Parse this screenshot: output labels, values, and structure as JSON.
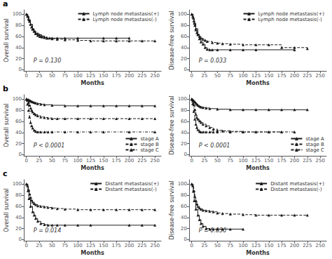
{
  "chart_data": [
    {
      "type": "step",
      "title": "a",
      "xlabel": "Months",
      "ylabel": "Overall survival",
      "annotations": [
        "P = 0.130"
      ],
      "xlim": [
        -5,
        262
      ],
      "xticks": [
        0,
        25,
        50,
        75,
        100,
        125,
        150,
        175,
        200,
        225,
        250
      ],
      "ylim": [
        -2,
        108
      ],
      "yticks": [
        0,
        20,
        40,
        60,
        80,
        100
      ],
      "grid": false,
      "legend": "upper right",
      "series": [
        {
          "name": "Lymph node metastasis(+)",
          "color": "#1a1a1a",
          "line_style": "solid",
          "marker": "triangle",
          "x": [
            0,
            3,
            5,
            8,
            12,
            15,
            18,
            22,
            26,
            30,
            35,
            40,
            45,
            50,
            60,
            75,
            100,
            150,
            175,
            200
          ],
          "values": [
            100,
            96,
            90,
            82,
            74,
            69,
            65,
            62,
            60,
            59,
            58,
            57,
            57,
            57,
            57,
            57,
            57,
            57,
            57,
            57
          ]
        },
        {
          "name": "Lymph node metastasis(-)",
          "color": "#1a1a1a",
          "line_style": "dashed",
          "marker": "triangle",
          "x": [
            0,
            2,
            4,
            6,
            8,
            10,
            12,
            15,
            18,
            22,
            26,
            30,
            35,
            40,
            50,
            60,
            75,
            100,
            125,
            150,
            175,
            200,
            225,
            250
          ],
          "values": [
            100,
            97,
            92,
            87,
            82,
            77,
            73,
            70,
            67,
            65,
            63,
            61,
            59,
            57,
            56,
            55,
            54,
            53,
            52,
            52,
            52,
            52,
            52,
            52
          ]
        }
      ]
    },
    {
      "type": "step",
      "xlabel": "Months",
      "ylabel": "Disease-free survival",
      "annotations": [
        "P = 0.033"
      ],
      "xlim": [
        -5,
        262
      ],
      "xticks": [
        0,
        25,
        50,
        75,
        100,
        125,
        150,
        175,
        200,
        225,
        250
      ],
      "ylim": [
        -2,
        108
      ],
      "yticks": [
        0,
        20,
        40,
        60,
        80,
        100
      ],
      "grid": false,
      "legend": "upper right",
      "series": [
        {
          "name": "Lymph node metastasis(+)",
          "color": "#1a1a1a",
          "line_style": "solid",
          "marker": "triangle",
          "x": [
            0,
            3,
            5,
            8,
            12,
            15,
            18,
            22,
            26,
            30,
            35,
            40,
            50,
            75,
            100,
            125,
            200
          ],
          "values": [
            100,
            93,
            84,
            74,
            64,
            56,
            50,
            46,
            40,
            37,
            36,
            36,
            36,
            36,
            36,
            36,
            36
          ]
        },
        {
          "name": "Lymph node metastasis(-)",
          "color": "#1a1a1a",
          "line_style": "dashed",
          "marker": "triangle",
          "x": [
            0,
            2,
            4,
            6,
            8,
            10,
            12,
            15,
            18,
            22,
            26,
            30,
            40,
            50,
            60,
            75,
            100,
            125,
            150,
            175,
            200,
            225
          ],
          "values": [
            100,
            96,
            88,
            80,
            72,
            67,
            63,
            60,
            57,
            55,
            53,
            51,
            49,
            48,
            47,
            46,
            45,
            45,
            45,
            40,
            40,
            38
          ]
        }
      ]
    },
    {
      "type": "step",
      "title": "b",
      "xlabel": "Months",
      "ylabel": "Overall survival",
      "annotations": [
        "P < 0.0001"
      ],
      "xlim": [
        -5,
        262
      ],
      "xticks": [
        0,
        25,
        50,
        75,
        100,
        125,
        150,
        175,
        200,
        225,
        250
      ],
      "ylim": [
        -2,
        108
      ],
      "yticks": [
        0,
        20,
        40,
        60,
        80,
        100
      ],
      "grid": false,
      "legend": "lower right",
      "series": [
        {
          "name": "stage A",
          "color": "#1a1a1a",
          "line_style": "solid",
          "marker": "triangle",
          "x": [
            0,
            2,
            4,
            6,
            8,
            10,
            12,
            15,
            18,
            22,
            28,
            35,
            50,
            75,
            100,
            125,
            150,
            175,
            200,
            225,
            250
          ],
          "values": [
            100,
            99,
            99,
            98,
            97,
            96,
            95,
            94,
            93,
            92,
            91,
            90,
            89,
            88,
            88,
            88,
            88,
            88,
            88,
            88,
            88
          ]
        },
        {
          "name": "stage B",
          "color": "#1a1a1a",
          "line_style": "dashed",
          "marker": "triangle",
          "x": [
            0,
            2,
            4,
            6,
            8,
            10,
            12,
            15,
            18,
            22,
            28,
            35,
            42,
            50,
            60,
            75,
            100,
            125,
            150,
            175,
            200,
            225,
            250
          ],
          "values": [
            100,
            98,
            94,
            89,
            84,
            80,
            77,
            74,
            72,
            70,
            68,
            67,
            66,
            65,
            65,
            65,
            65,
            65,
            65,
            65,
            65,
            65,
            65
          ]
        },
        {
          "name": "stage C",
          "color": "#1a1a1a",
          "line_style": "dashdot",
          "marker": "triangle",
          "x": [
            0,
            2,
            4,
            6,
            8,
            10,
            12,
            15,
            18,
            22,
            28,
            35,
            42,
            50,
            75,
            100,
            125,
            150,
            200,
            250
          ],
          "values": [
            100,
            91,
            80,
            68,
            58,
            52,
            48,
            44,
            42,
            41,
            41,
            41,
            41,
            41,
            41,
            41,
            41,
            41,
            41,
            41
          ]
        }
      ]
    },
    {
      "type": "step",
      "xlabel": "Months",
      "ylabel": "Disease-free survival",
      "annotations": [
        "P < 0.0001"
      ],
      "xlim": [
        -5,
        262
      ],
      "xticks": [
        0,
        25,
        50,
        75,
        100,
        125,
        150,
        175,
        200,
        225,
        250
      ],
      "ylim": [
        -2,
        108
      ],
      "yticks": [
        0,
        20,
        40,
        60,
        80,
        100
      ],
      "grid": false,
      "legend": "lower right",
      "series": [
        {
          "name": "stage A",
          "color": "#1a1a1a",
          "line_style": "solid",
          "marker": "triangle",
          "x": [
            0,
            2,
            4,
            6,
            8,
            10,
            12,
            15,
            18,
            22,
            28,
            35,
            50,
            75,
            100,
            125,
            150,
            175,
            200,
            225
          ],
          "values": [
            100,
            99,
            97,
            95,
            93,
            91,
            89,
            87,
            86,
            85,
            84,
            83,
            82,
            81,
            81,
            81,
            81,
            81,
            81,
            81
          ]
        },
        {
          "name": "stage B",
          "color": "#1a1a1a",
          "line_style": "dashed",
          "marker": "triangle",
          "x": [
            0,
            2,
            4,
            6,
            8,
            10,
            12,
            15,
            18,
            22,
            28,
            35,
            42,
            50,
            60,
            75,
            100,
            125,
            150,
            175
          ],
          "values": [
            100,
            97,
            90,
            81,
            73,
            67,
            64,
            61,
            58,
            55,
            52,
            49,
            46,
            44,
            43,
            42,
            41,
            41,
            41,
            41
          ]
        },
        {
          "name": "stage C",
          "color": "#1a1a1a",
          "line_style": "dashdot",
          "marker": "triangle",
          "x": [
            0,
            2,
            4,
            6,
            8,
            10,
            12,
            15,
            18,
            22,
            28,
            35,
            42,
            50,
            75,
            100,
            125,
            150,
            175,
            200
          ],
          "values": [
            100,
            92,
            78,
            64,
            55,
            49,
            45,
            42,
            41,
            41,
            41,
            41,
            41,
            41,
            41,
            41,
            41,
            41,
            41,
            41
          ]
        }
      ]
    },
    {
      "type": "step",
      "title": "c",
      "xlabel": "Months",
      "ylabel": "Overall survival",
      "annotations": [
        "P = 0.014"
      ],
      "xlim": [
        -5,
        262
      ],
      "xticks": [
        0,
        25,
        50,
        75,
        100,
        125,
        150,
        175,
        200,
        225,
        250
      ],
      "ylim": [
        -2,
        108
      ],
      "yticks": [
        0,
        20,
        40,
        60,
        80,
        100
      ],
      "grid": false,
      "legend": "upper right",
      "series": [
        {
          "name": "Distant metastasis(+)",
          "color": "#1a1a1a",
          "line_style": "solid",
          "marker": "triangle",
          "x": [
            0,
            3,
            5,
            8,
            12,
            15,
            18,
            22,
            28,
            35,
            42,
            50,
            60,
            75,
            100,
            125,
            200,
            225,
            250
          ],
          "values": [
            100,
            88,
            74,
            60,
            50,
            44,
            38,
            33,
            29,
            27,
            26,
            26,
            26,
            26,
            26,
            26,
            26,
            26,
            26
          ]
        },
        {
          "name": "Distant metastasis(-)",
          "color": "#1a1a1a",
          "line_style": "dashed",
          "marker": "triangle",
          "x": [
            0,
            2,
            4,
            6,
            8,
            10,
            12,
            15,
            18,
            22,
            28,
            35,
            42,
            50,
            60,
            75,
            100,
            125,
            150,
            175,
            200,
            225,
            250
          ],
          "values": [
            100,
            97,
            90,
            82,
            76,
            71,
            68,
            65,
            63,
            61,
            60,
            59,
            58,
            57,
            56,
            55,
            54,
            54,
            54,
            54,
            54,
            54,
            54
          ]
        }
      ]
    },
    {
      "type": "step",
      "xlabel": "Months",
      "ylabel": "Disease-free survival",
      "annotations": [
        "P = 0.030"
      ],
      "xlim": [
        -5,
        262
      ],
      "xticks": [
        0,
        25,
        50,
        75,
        100,
        125,
        150,
        175,
        200,
        225,
        250
      ],
      "ylim": [
        -2,
        108
      ],
      "yticks": [
        0,
        20,
        40,
        60,
        80,
        100
      ],
      "grid": false,
      "legend": "upper right",
      "series": [
        {
          "name": "Distant metastasis(+)",
          "color": "#1a1a1a",
          "line_style": "solid",
          "marker": "triangle",
          "x": [
            0,
            3,
            5,
            8,
            12,
            15,
            18,
            22,
            28,
            35,
            42,
            50,
            60,
            75,
            100
          ],
          "values": [
            100,
            87,
            70,
            55,
            44,
            36,
            29,
            24,
            20,
            19,
            19,
            19,
            19,
            19,
            19
          ]
        },
        {
          "name": "Distant metastasis(-)",
          "color": "#1a1a1a",
          "line_style": "dashed",
          "marker": "triangle",
          "x": [
            0,
            2,
            4,
            6,
            8,
            10,
            12,
            15,
            18,
            22,
            28,
            35,
            42,
            50,
            60,
            75,
            100,
            125,
            150,
            175,
            200,
            225
          ],
          "values": [
            100,
            97,
            88,
            78,
            70,
            64,
            60,
            57,
            55,
            53,
            52,
            51,
            50,
            48,
            47,
            46,
            45,
            44,
            44,
            44,
            44,
            44
          ]
        }
      ]
    }
  ]
}
